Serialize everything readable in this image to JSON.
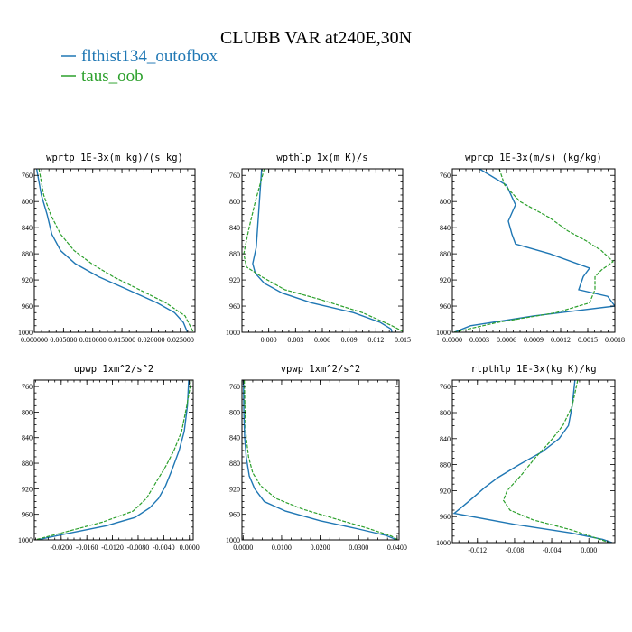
{
  "figure": {
    "title": "CLUBB VAR at240E,30N",
    "legend": [
      {
        "label": "flthist134_outofbox",
        "color": "#1f77b4",
        "dash": "solid"
      },
      {
        "label": "taus_oob",
        "color": "#2ca02c",
        "dash": "dashed"
      }
    ]
  },
  "chart_data": [
    {
      "type": "line",
      "title": "wprtp  1E-3x(m kg)/(s kg)",
      "xlim": [
        0,
        0.0275
      ],
      "ylim": [
        1000,
        750
      ],
      "xticks": [
        0,
        0.005,
        0.01,
        0.015,
        0.02,
        0.025
      ],
      "xtick_labels": [
        "0.000000",
        "0.005000",
        "0.010000",
        "0.015000",
        "0.020000",
        "0.025000"
      ],
      "yticks": [
        760,
        800,
        840,
        880,
        920,
        960,
        1000
      ],
      "ytick_labels": [
        "760",
        "800",
        "840",
        "880",
        "920",
        "960",
        "1000"
      ],
      "series": [
        {
          "name": "flthist134_outofbox",
          "x": [
            0.0004,
            0.0012,
            0.0022,
            0.003,
            0.0045,
            0.007,
            0.011,
            0.016,
            0.021,
            0.024,
            0.0255,
            0.0262
          ],
          "y": [
            750,
            790,
            820,
            850,
            875,
            895,
            915,
            935,
            955,
            970,
            985,
            1000
          ]
        },
        {
          "name": "taus_oob",
          "x": [
            0.0008,
            0.0016,
            0.0028,
            0.0045,
            0.0068,
            0.0098,
            0.0135,
            0.018,
            0.0225,
            0.0258,
            0.0272
          ],
          "y": [
            750,
            790,
            820,
            850,
            875,
            895,
            915,
            935,
            955,
            975,
            1000
          ]
        }
      ]
    },
    {
      "type": "line",
      "title": "wpthlp  1x(m K)/s",
      "xlim": [
        -0.003,
        0.015
      ],
      "ylim": [
        1000,
        750
      ],
      "xticks": [
        0,
        0.003,
        0.006,
        0.009,
        0.012,
        0.015
      ],
      "xtick_labels": [
        "0.000",
        "0.003",
        "0.006",
        "0.009",
        "0.012",
        "0.015"
      ],
      "yticks": [
        760,
        800,
        840,
        880,
        920,
        960,
        1000
      ],
      "ytick_labels": [
        "760",
        "800",
        "840",
        "880",
        "920",
        "960",
        "1000"
      ],
      "series": [
        {
          "name": "flthist134_outofbox",
          "x": [
            -0.0008,
            -0.001,
            -0.0012,
            -0.0014,
            -0.0018,
            -0.0015,
            -0.0005,
            0.0015,
            0.0048,
            0.0095,
            0.0125,
            0.0137,
            0.0138
          ],
          "y": [
            750,
            790,
            830,
            870,
            895,
            910,
            925,
            940,
            955,
            970,
            985,
            995,
            1000
          ]
        },
        {
          "name": "taus_oob",
          "x": [
            -0.0005,
            -0.0015,
            -0.0022,
            -0.0028,
            -0.0025,
            -0.0008,
            0.0018,
            0.0058,
            0.0105,
            0.0138,
            0.0152
          ],
          "y": [
            750,
            800,
            840,
            880,
            900,
            915,
            935,
            950,
            970,
            990,
            1000
          ]
        }
      ]
    },
    {
      "type": "line",
      "title": "wprcp  1E-3x(m/s) (kg/kg)",
      "xlim": [
        0,
        0.0018
      ],
      "ylim": [
        1000,
        750
      ],
      "xticks": [
        0,
        0.0003,
        0.0006,
        0.0009,
        0.0012,
        0.0015,
        0.0018
      ],
      "xtick_labels": [
        "0.0000",
        "0.0003",
        "0.0006",
        "0.0009",
        "0.0012",
        "0.0015",
        "0.0018"
      ],
      "yticks": [
        760,
        800,
        840,
        880,
        920,
        960,
        1000
      ],
      "ytick_labels": [
        "760",
        "800",
        "840",
        "880",
        "920",
        "960",
        "1000"
      ],
      "series": [
        {
          "name": "flthist134_outofbox",
          "x": [
            0.0003,
            0.0006,
            0.0007,
            0.00062,
            0.00066,
            0.0007,
            0.00108,
            0.00152,
            0.00145,
            0.0014,
            0.00172,
            0.0018,
            0.0009,
            0.0002,
            2e-05
          ],
          "y": [
            750,
            775,
            805,
            830,
            850,
            865,
            880,
            902,
            915,
            935,
            945,
            960,
            975,
            990,
            1000
          ]
        },
        {
          "name": "taus_oob",
          "x": [
            0.00052,
            0.00058,
            0.00075,
            0.00108,
            0.00128,
            0.00148,
            0.00165,
            0.00178,
            0.00165,
            0.00158,
            0.00158,
            0.00152,
            0.00115,
            0.0005,
            2e-05
          ],
          "y": [
            750,
            775,
            800,
            825,
            845,
            860,
            875,
            892,
            905,
            915,
            935,
            955,
            970,
            985,
            1000
          ]
        }
      ]
    },
    {
      "type": "line",
      "title": "upwp  1xm^2/s^2",
      "xlim": [
        -0.0242,
        0.0006
      ],
      "ylim": [
        1000,
        750
      ],
      "xticks": [
        -0.02,
        -0.016,
        -0.012,
        -0.008,
        -0.004,
        0
      ],
      "xtick_labels": [
        "-0.0200",
        "-0.0160",
        "-0.0120",
        "-0.0080",
        "-0.0040",
        "0.0000"
      ],
      "yticks": [
        760,
        800,
        840,
        880,
        920,
        960,
        1000
      ],
      "ytick_labels": [
        "760",
        "800",
        "840",
        "880",
        "920",
        "960",
        "1000"
      ],
      "series": [
        {
          "name": "flthist134_outofbox",
          "x": [
            -0.0001,
            -0.0003,
            -0.0008,
            -0.0016,
            -0.0027,
            -0.0037,
            -0.0048,
            -0.0062,
            -0.0085,
            -0.013,
            -0.019,
            -0.0238
          ],
          "y": [
            750,
            790,
            830,
            860,
            890,
            915,
            935,
            950,
            965,
            978,
            990,
            1000
          ]
        },
        {
          "name": "taus_oob",
          "x": [
            0.0003,
            -0.0004,
            -0.0012,
            -0.0024,
            -0.0037,
            -0.0052,
            -0.0067,
            -0.0088,
            -0.0135,
            -0.0195,
            -0.0241
          ],
          "y": [
            750,
            790,
            830,
            860,
            885,
            910,
            935,
            955,
            972,
            988,
            1000
          ]
        }
      ]
    },
    {
      "type": "line",
      "title": "vpwp  1xm^2/s^2",
      "xlim": [
        -0.0003,
        0.0405
      ],
      "ylim": [
        1000,
        750
      ],
      "xticks": [
        0,
        0.01,
        0.02,
        0.03,
        0.04
      ],
      "xtick_labels": [
        "0.0000",
        "0.0100",
        "0.0200",
        "0.0300",
        "0.0400"
      ],
      "yticks": [
        760,
        800,
        840,
        880,
        920,
        960,
        1000
      ],
      "ytick_labels": [
        "760",
        "800",
        "840",
        "880",
        "920",
        "960",
        "1000"
      ],
      "series": [
        {
          "name": "flthist134_outofbox",
          "x": [
            0.0001,
            0.0002,
            0.0004,
            0.0008,
            0.0016,
            0.003,
            0.0055,
            0.011,
            0.02,
            0.03,
            0.037,
            0.04
          ],
          "y": [
            750,
            800,
            840,
            870,
            900,
            920,
            940,
            955,
            970,
            983,
            993,
            1000
          ]
        },
        {
          "name": "taus_oob",
          "x": [
            0.0003,
            0.0005,
            0.0008,
            0.0014,
            0.0025,
            0.0045,
            0.0085,
            0.0155,
            0.0245,
            0.0325,
            0.0385,
            0.0402
          ],
          "y": [
            750,
            800,
            840,
            870,
            895,
            915,
            935,
            952,
            968,
            982,
            994,
            1000
          ]
        }
      ]
    },
    {
      "type": "line",
      "title": "rtpthlp  1E-3x(kg K)/kg",
      "xlim": [
        -0.0147,
        0.0028
      ],
      "ylim": [
        1000,
        750
      ],
      "xticks": [
        -0.012,
        -0.008,
        -0.004,
        0
      ],
      "xtick_labels": [
        "-0.012",
        "-0.008",
        "-0.004",
        "0.000"
      ],
      "yticks": [
        760,
        800,
        840,
        880,
        920,
        960,
        1000
      ],
      "ytick_labels": [
        "760",
        "800",
        "840",
        "880",
        "920",
        "960",
        "1000"
      ],
      "series": [
        {
          "name": "flthist134_outofbox",
          "x": [
            -0.0015,
            -0.0018,
            -0.0022,
            -0.0032,
            -0.005,
            -0.0075,
            -0.0098,
            -0.0112,
            -0.0128,
            -0.0145,
            -0.008,
            -0.002,
            0.0015,
            0.0025
          ],
          "y": [
            750,
            790,
            820,
            840,
            860,
            880,
            900,
            915,
            935,
            955,
            972,
            985,
            995,
            1000
          ]
        },
        {
          "name": "taus_oob",
          "x": [
            -0.0012,
            -0.0018,
            -0.0028,
            -0.0042,
            -0.0058,
            -0.0072,
            -0.0088,
            -0.0092,
            -0.0085,
            -0.006,
            -0.002,
            0.0008,
            0.0022
          ],
          "y": [
            750,
            790,
            820,
            845,
            870,
            895,
            920,
            935,
            950,
            965,
            980,
            993,
            1000
          ]
        }
      ]
    }
  ]
}
